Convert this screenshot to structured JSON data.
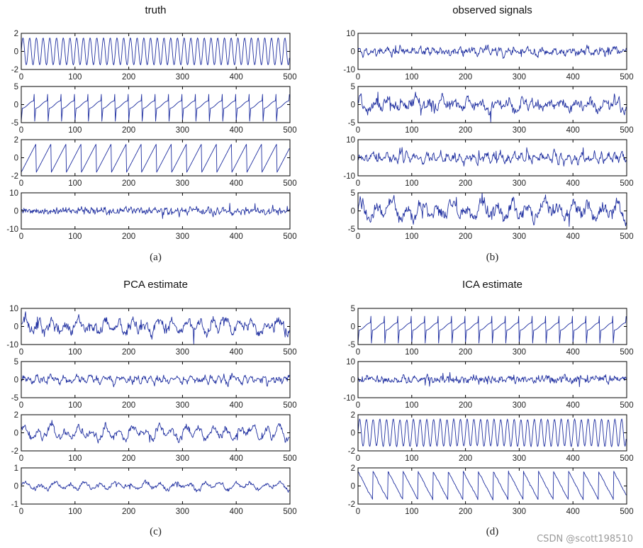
{
  "watermark": "CSDN @scott198510",
  "colors": {
    "series": "#1f2fa0",
    "axes": "#000000"
  },
  "chart_data": [
    {
      "type": "line",
      "title": "truth",
      "caption": "(a)",
      "xlim": [
        0,
        500
      ],
      "xticks": [
        0,
        100,
        200,
        300,
        400,
        500
      ],
      "subplots": [
        {
          "ylim": [
            -2,
            2
          ],
          "yticks": [
            -2,
            0,
            2
          ],
          "signal": "sine",
          "amplitude": 1.5,
          "period": 12.5,
          "noise": 0
        },
        {
          "ylim": [
            -5,
            5
          ],
          "yticks": [
            -5,
            0,
            5
          ],
          "signal": "spikes",
          "amplitude": 3.5,
          "period": 25,
          "noise": 0
        },
        {
          "ylim": [
            -2,
            2
          ],
          "yticks": [
            -2,
            0,
            2
          ],
          "signal": "sawtooth",
          "amplitude": 1.6,
          "period": 28,
          "noise": 0
        },
        {
          "ylim": [
            -10,
            10
          ],
          "yticks": [
            -10,
            0,
            10
          ],
          "signal": "noise",
          "amplitude": 0,
          "period": 0,
          "noise": 1.8
        }
      ]
    },
    {
      "type": "line",
      "title": "observed signals",
      "caption": "(b)",
      "xlim": [
        0,
        500
      ],
      "xticks": [
        0,
        100,
        200,
        300,
        400,
        500
      ],
      "subplots": [
        {
          "ylim": [
            -10,
            10
          ],
          "yticks": [
            -10,
            0,
            10
          ],
          "signal": "mixture",
          "amplitude": 1.2,
          "period": 12.5,
          "noise": 1.8
        },
        {
          "ylim": [
            -5,
            5
          ],
          "yticks": [
            -5,
            0,
            5
          ],
          "signal": "mixture",
          "amplitude": 1.0,
          "period": 25,
          "noise": 1.3
        },
        {
          "ylim": [
            -10,
            10
          ],
          "yticks": [
            -10,
            0,
            10
          ],
          "signal": "mixture",
          "amplitude": 1.3,
          "period": 12.5,
          "noise": 2.0
        },
        {
          "ylim": [
            -5,
            5
          ],
          "yticks": [
            -5,
            0,
            5
          ],
          "signal": "mixture",
          "amplitude": 1.6,
          "period": 28,
          "noise": 1.6
        }
      ]
    },
    {
      "type": "line",
      "title": "PCA estimate",
      "caption": "(c)",
      "xlim": [
        0,
        500
      ],
      "xticks": [
        0,
        100,
        200,
        300,
        400,
        500
      ],
      "subplots": [
        {
          "ylim": [
            -10,
            10
          ],
          "yticks": [
            -10,
            0,
            10
          ],
          "signal": "mixture",
          "amplitude": 2.5,
          "period": 25,
          "noise": 2.5
        },
        {
          "ylim": [
            -5,
            5
          ],
          "yticks": [
            -5,
            0,
            5
          ],
          "signal": "mixture",
          "amplitude": 0.6,
          "period": 12.5,
          "noise": 0.8
        },
        {
          "ylim": [
            -2,
            2
          ],
          "yticks": [
            -2,
            0,
            2
          ],
          "signal": "mixture",
          "amplitude": 0.5,
          "period": 25,
          "noise": 0.35
        },
        {
          "ylim": [
            -1,
            1
          ],
          "yticks": [
            -1,
            0,
            1
          ],
          "signal": "mixture",
          "amplitude": 0.15,
          "period": 28,
          "noise": 0.1
        }
      ]
    },
    {
      "type": "line",
      "title": "ICA estimate",
      "caption": "(d)",
      "xlim": [
        0,
        500
      ],
      "xticks": [
        0,
        100,
        200,
        300,
        400,
        500
      ],
      "subplots": [
        {
          "ylim": [
            -5,
            5
          ],
          "yticks": [
            -5,
            0,
            5
          ],
          "signal": "spikes",
          "amplitude": 3.5,
          "period": 25,
          "noise": 0
        },
        {
          "ylim": [
            -10,
            10
          ],
          "yticks": [
            -10,
            0,
            10
          ],
          "signal": "noise",
          "amplitude": 0,
          "period": 0,
          "noise": 1.8
        },
        {
          "ylim": [
            -2,
            2
          ],
          "yticks": [
            -2,
            0,
            2
          ],
          "signal": "sine",
          "amplitude": 1.5,
          "period": 12.5,
          "noise": 0.05
        },
        {
          "ylim": [
            -2,
            2
          ],
          "yticks": [
            -2,
            0,
            2
          ],
          "signal": "sawtooth_rev",
          "amplitude": 1.6,
          "period": 28,
          "noise": 0.06
        }
      ]
    }
  ]
}
